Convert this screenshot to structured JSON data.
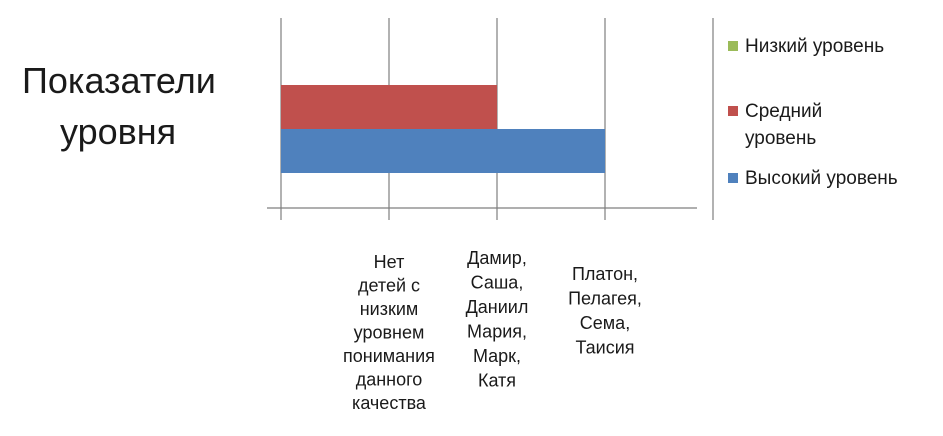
{
  "chart_data": {
    "type": "bar",
    "orientation": "horizontal",
    "title": "Показатели уровня",
    "title_lines": [
      "Показатели",
      "уровня"
    ],
    "categories": [
      "Нет детей с низким уровнем понимания данного качества",
      "Дамир, Саша, Даниил Мария, Марк, Катя",
      "Платон, Пелагея, Сема, Таисия"
    ],
    "category_lines": [
      [
        "Нет",
        "детей с",
        "низким",
        "уровнем",
        "понимания",
        "данного",
        "качества"
      ],
      [
        "Дамир,",
        "Саша,",
        "Даниил",
        "Мария,",
        "Марк,",
        "Катя"
      ],
      [
        "Платон,",
        "Пелагея,",
        "Сема,",
        "Таисия"
      ]
    ],
    "xlim": [
      0,
      4
    ],
    "grid": true,
    "legend_position": "right",
    "series": [
      {
        "name": "Низкий уровень",
        "legend_lines": [
          "Низкий уровень"
        ],
        "color": "#9bbb59",
        "value": 0
      },
      {
        "name": "Средний уровень",
        "legend_lines": [
          "Средний",
          "уровень"
        ],
        "color": "#c0504d",
        "value": 2
      },
      {
        "name": "Высокий уровень",
        "legend_lines": [
          "Высокий уровень"
        ],
        "color": "#4f81bd",
        "value": 3
      }
    ]
  }
}
